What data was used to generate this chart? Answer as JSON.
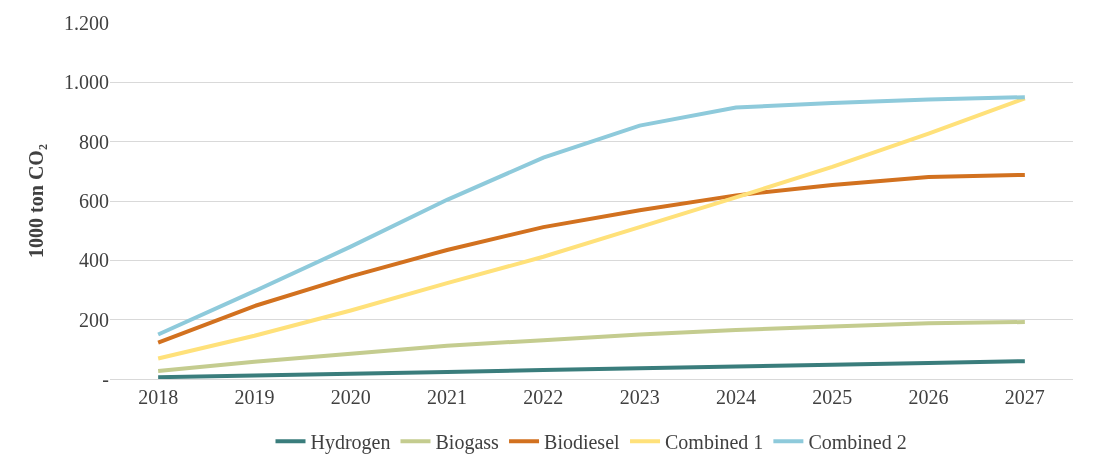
{
  "chart_data": {
    "type": "line",
    "ylabel": "1000 ton CO₂",
    "categories": [
      "2018",
      "2019",
      "2020",
      "2021",
      "2022",
      "2023",
      "2024",
      "2025",
      "2026",
      "2027"
    ],
    "ylim": [
      0,
      1200
    ],
    "yticks": [
      {
        "value": 0,
        "label": "-"
      },
      {
        "value": 200,
        "label": "200"
      },
      {
        "value": 400,
        "label": "400"
      },
      {
        "value": 600,
        "label": "600"
      },
      {
        "value": 800,
        "label": "800"
      },
      {
        "value": 1000,
        "label": "1.000"
      },
      {
        "value": 1200,
        "label": "1.200"
      }
    ],
    "grid": "y",
    "legend": "bottom",
    "marker": "none",
    "line_style": "solid",
    "series": [
      {
        "name": "Hydrogen",
        "color": "#3a7d7c",
        "values": [
          6,
          12,
          18,
          24,
          30,
          36,
          42,
          48,
          54,
          60
        ]
      },
      {
        "name": "Biogass",
        "color": "#c4cc8f",
        "values": [
          27,
          58,
          85,
          112,
          131,
          150,
          165,
          177,
          188,
          192
        ]
      },
      {
        "name": "Biodiesel",
        "color": "#d2711f",
        "values": [
          123,
          246,
          346,
          435,
          512,
          569,
          619,
          654,
          681,
          688
        ]
      },
      {
        "name": "Combined 1",
        "color": "#ffe17a",
        "values": [
          69,
          146,
          231,
          323,
          412,
          512,
          612,
          715,
          827,
          946
        ]
      },
      {
        "name": "Combined 2",
        "color": "#8ecadb",
        "values": [
          150,
          296,
          446,
          604,
          746,
          854,
          915,
          930,
          942,
          950
        ]
      }
    ]
  }
}
